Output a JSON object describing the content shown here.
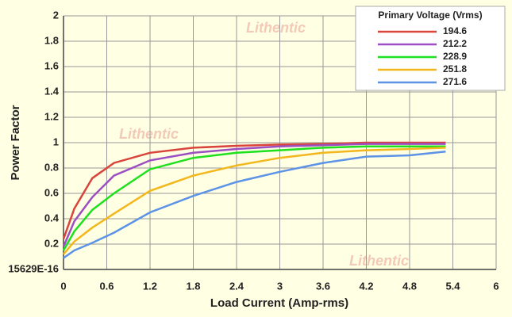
{
  "chart_data": {
    "type": "line",
    "x_label": "Load Current (Amp-rms)",
    "y_label": "Power Factor",
    "watermark": "Lithentic",
    "legend_title": "Primary Voltage (Vrms)",
    "legend_position": "upper right",
    "grid": true,
    "xlim": [
      0,
      6
    ],
    "ylim": [
      0,
      2
    ],
    "xticks": [
      0,
      0.6,
      1.2,
      1.8,
      2.4,
      3,
      3.6,
      4.2,
      4.8,
      5.4,
      6
    ],
    "yticks": [
      {
        "value": 0,
        "label": "15629E-16"
      },
      0.2,
      0.4,
      0.6,
      0.8,
      1,
      1.2,
      1.4,
      1.6,
      1.8,
      2
    ],
    "x": [
      0,
      0.15,
      0.4,
      0.7,
      1.2,
      1.8,
      2.4,
      3,
      3.6,
      4.2,
      4.8,
      5.3
    ],
    "series": [
      {
        "name": "194.6",
        "color": "#d9443c",
        "values": [
          0.24,
          0.48,
          0.72,
          0.84,
          0.92,
          0.96,
          0.975,
          0.985,
          0.99,
          1.0,
          1.0,
          1.0
        ]
      },
      {
        "name": "212.2",
        "color": "#9b4fc2",
        "values": [
          0.18,
          0.38,
          0.57,
          0.74,
          0.86,
          0.92,
          0.95,
          0.97,
          0.98,
          0.99,
          0.99,
          0.99
        ]
      },
      {
        "name": "228.9",
        "color": "#1ee01e",
        "values": [
          0.15,
          0.3,
          0.47,
          0.6,
          0.79,
          0.88,
          0.92,
          0.94,
          0.96,
          0.97,
          0.97,
          0.97
        ]
      },
      {
        "name": "251.8",
        "color": "#f2b71c",
        "values": [
          0.12,
          0.22,
          0.33,
          0.44,
          0.62,
          0.74,
          0.82,
          0.88,
          0.92,
          0.94,
          0.95,
          0.96
        ]
      },
      {
        "name": "271.6",
        "color": "#5c93e6",
        "values": [
          0.09,
          0.15,
          0.21,
          0.29,
          0.45,
          0.58,
          0.69,
          0.77,
          0.84,
          0.89,
          0.9,
          0.93
        ]
      }
    ]
  }
}
